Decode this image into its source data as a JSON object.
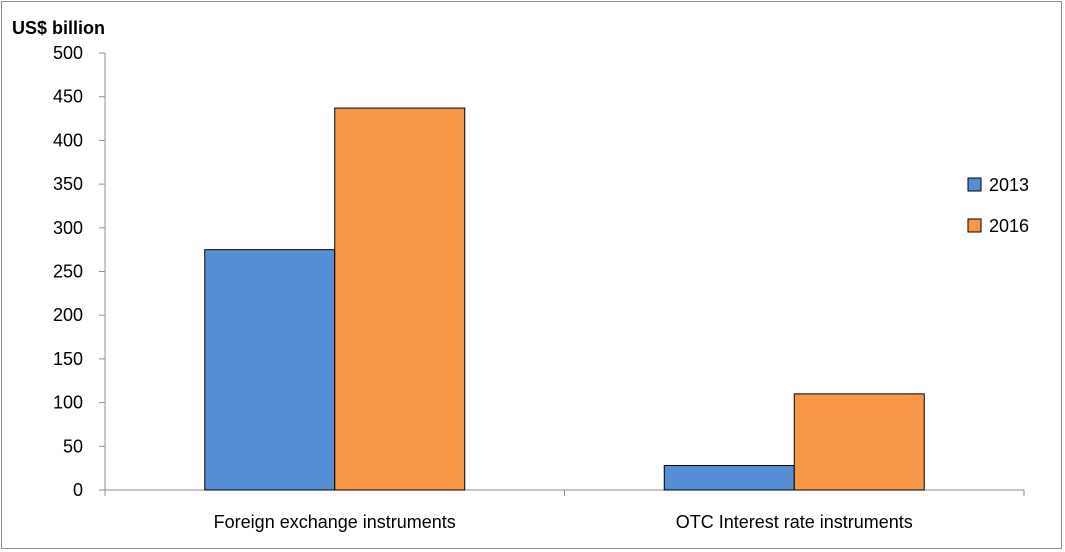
{
  "chart_data": {
    "type": "bar",
    "unit_label": "US$ billion",
    "categories": [
      "Foreign exchange instruments",
      "OTC Interest rate instruments"
    ],
    "series": [
      {
        "name": "2013",
        "color": "#558ed5",
        "values": [
          275,
          28
        ]
      },
      {
        "name": "2016",
        "color": "#f79646",
        "values": [
          437,
          110
        ]
      }
    ],
    "ylim": [
      0,
      500
    ],
    "yticks": [
      0,
      50,
      100,
      150,
      200,
      250,
      300,
      350,
      400,
      450,
      500
    ],
    "grid": false,
    "legend_position": "right"
  }
}
